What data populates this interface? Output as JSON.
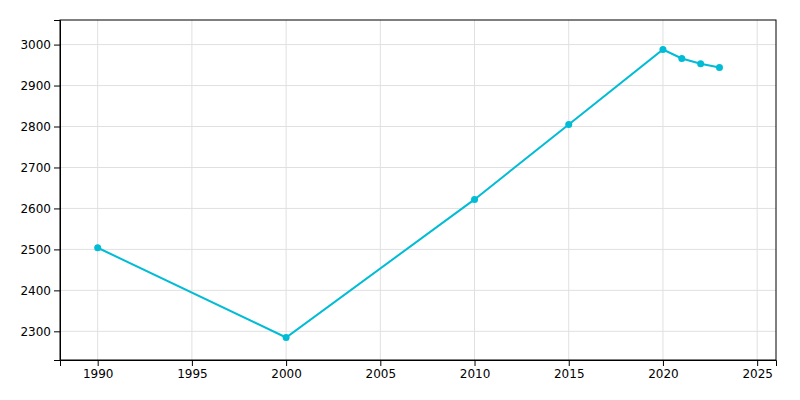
{
  "chart_data": {
    "type": "line",
    "x": [
      1990,
      2000,
      2010,
      2015,
      2020,
      2021,
      2022,
      2023
    ],
    "values": [
      2504,
      2285,
      2622,
      2805,
      2988,
      2966,
      2953,
      2944
    ],
    "color": "#00BCD4",
    "marker": "circle",
    "xlim": [
      1988,
      2026
    ],
    "ylim": [
      2230,
      3060
    ],
    "xticks": [
      1990,
      1995,
      2000,
      2005,
      2010,
      2015,
      2020,
      2025
    ],
    "yticks": [
      2300,
      2400,
      2500,
      2600,
      2700,
      2800,
      2900,
      3000
    ],
    "grid": true
  }
}
